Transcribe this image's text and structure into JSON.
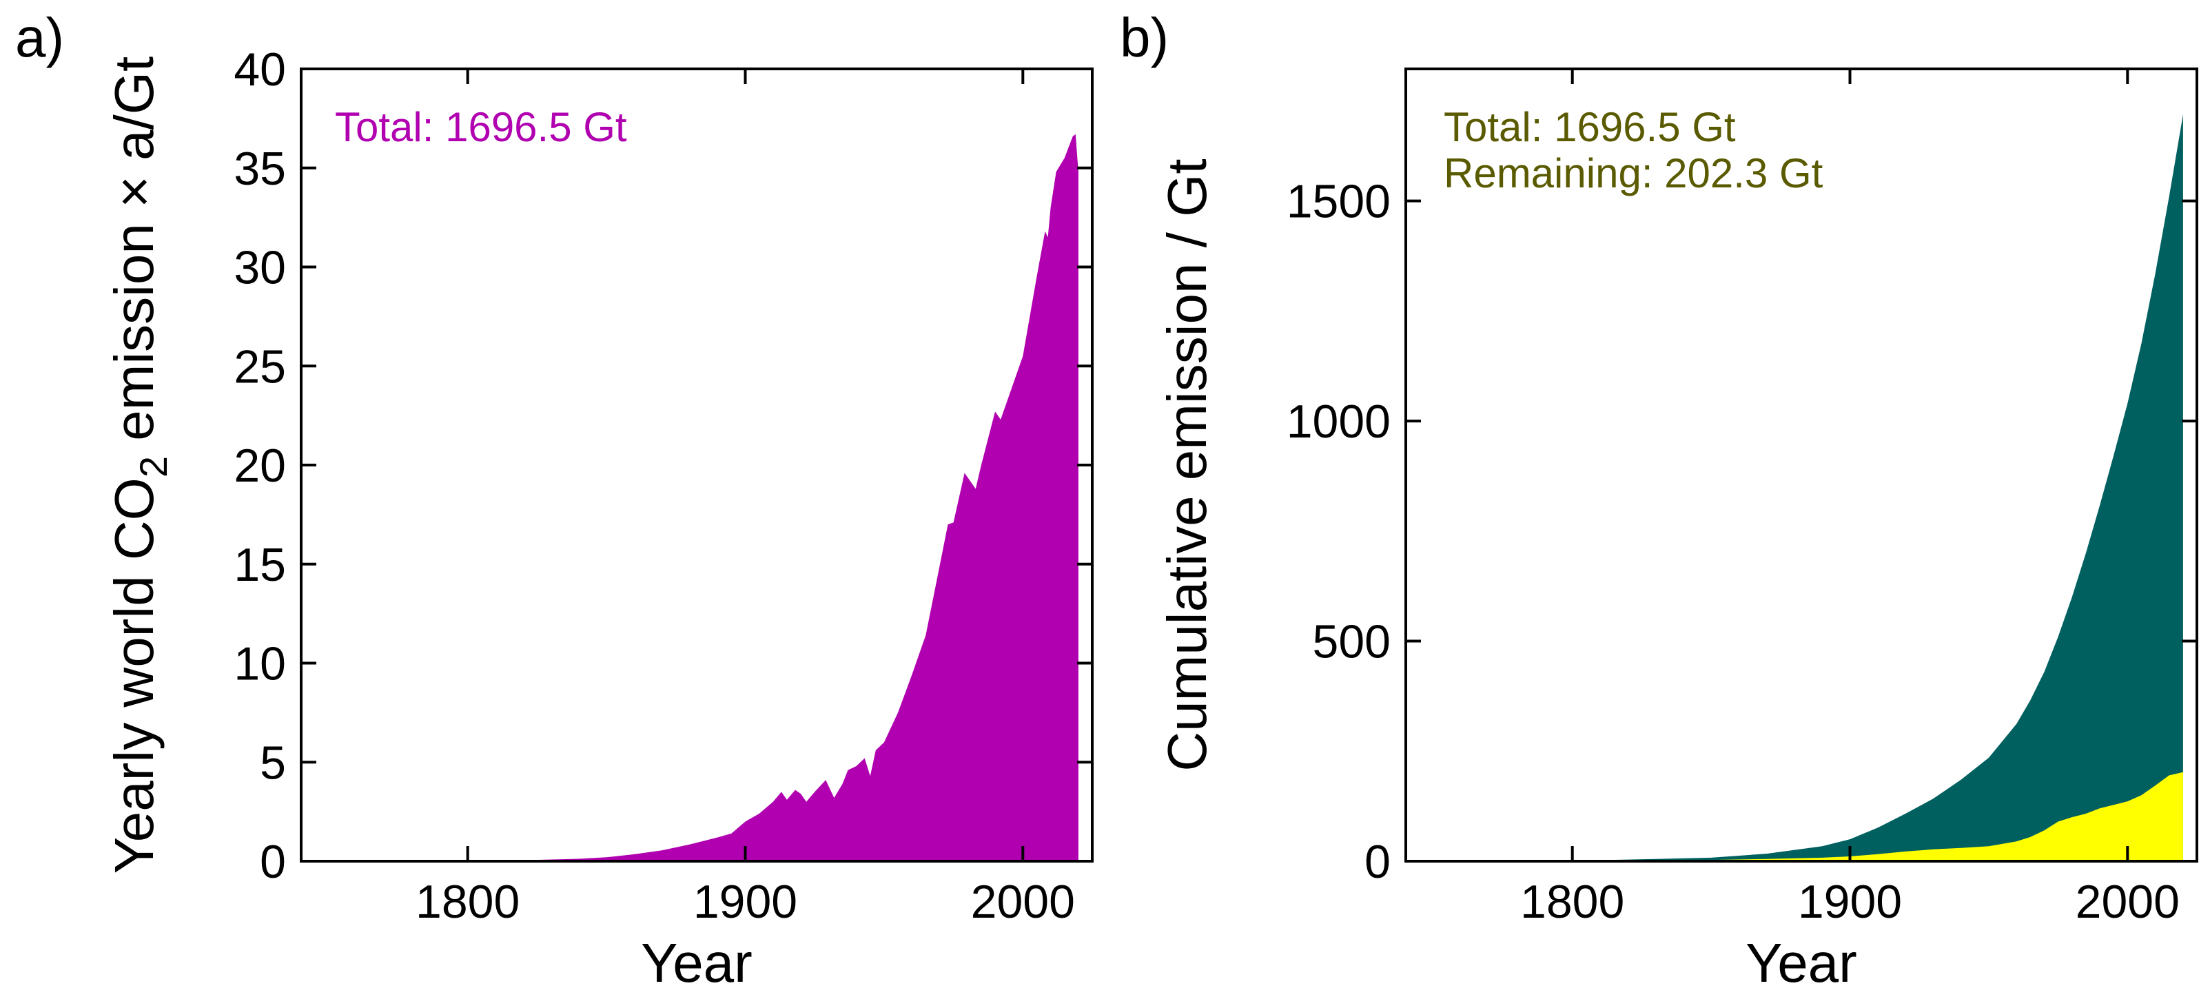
{
  "chart_data": [
    {
      "type": "area",
      "panel_label": "a)",
      "title": "",
      "xlabel": "Year",
      "ylabel_parts": [
        "Yearly world CO",
        "2",
        " emission × a/Gt"
      ],
      "xlim": [
        1740,
        2025
      ],
      "ylim": [
        0,
        40
      ],
      "xticks": [
        1800,
        1900,
        2000
      ],
      "yticks": [
        0,
        5,
        10,
        15,
        20,
        25,
        30,
        35,
        40
      ],
      "annotation": "Total: 1696.5 Gt",
      "annotation_color": "#b000b0",
      "series": [
        {
          "name": "Yearly CO2 emission",
          "color": "#b000b0",
          "x": [
            1750,
            1800,
            1820,
            1840,
            1850,
            1860,
            1870,
            1880,
            1890,
            1895,
            1900,
            1905,
            1910,
            1913,
            1915,
            1918,
            1920,
            1922,
            1925,
            1929,
            1930,
            1932,
            1935,
            1937,
            1940,
            1943,
            1945,
            1947,
            1950,
            1955,
            1960,
            1965,
            1970,
            1973,
            1975,
            1979,
            1980,
            1983,
            1985,
            1990,
            1992,
            1995,
            2000,
            2005,
            2008,
            2009,
            2010,
            2012,
            2015,
            2018,
            2019,
            2020
          ],
          "values": [
            0.01,
            0.03,
            0.05,
            0.12,
            0.2,
            0.35,
            0.55,
            0.85,
            1.2,
            1.4,
            2.0,
            2.4,
            3.0,
            3.5,
            3.1,
            3.6,
            3.4,
            3.0,
            3.5,
            4.1,
            3.8,
            3.2,
            3.9,
            4.6,
            4.8,
            5.2,
            4.3,
            5.6,
            6.0,
            7.5,
            9.4,
            11.4,
            14.9,
            17.0,
            17.1,
            19.6,
            19.4,
            18.8,
            20.0,
            22.7,
            22.3,
            23.5,
            25.5,
            29.5,
            31.8,
            31.5,
            33.0,
            34.8,
            35.5,
            36.6,
            36.7,
            34.8
          ]
        }
      ]
    },
    {
      "type": "area",
      "panel_label": "b)",
      "title": "",
      "xlabel": "Year",
      "ylabel": "Cumulative emission / Gt",
      "xlim": [
        1740,
        2025
      ],
      "ylim": [
        0,
        1800
      ],
      "xticks": [
        1800,
        1900,
        2000
      ],
      "yticks": [
        0,
        500,
        1000,
        1500
      ],
      "annotations": [
        "Total: 1696.5 Gt",
        "Remaining: 202.3 Gt"
      ],
      "annotation_color": "#5a5a00",
      "series": [
        {
          "name": "Total cumulative emission",
          "color": "#006060",
          "x": [
            1750,
            1800,
            1850,
            1870,
            1890,
            1900,
            1910,
            1920,
            1930,
            1940,
            1950,
            1960,
            1965,
            1970,
            1975,
            1980,
            1985,
            1990,
            1995,
            2000,
            2005,
            2010,
            2015,
            2020
          ],
          "values": [
            0,
            1,
            8,
            17,
            34,
            50,
            76,
            108,
            142,
            185,
            235,
            312,
            366,
            430,
            510,
            600,
            700,
            808,
            922,
            1040,
            1176,
            1335,
            1510,
            1696.5
          ]
        },
        {
          "name": "Remaining",
          "color": "#ffff00",
          "x": [
            1750,
            1800,
            1850,
            1870,
            1890,
            1900,
            1910,
            1920,
            1930,
            1940,
            1950,
            1960,
            1965,
            1970,
            1975,
            1980,
            1985,
            1990,
            1995,
            2000,
            2005,
            2010,
            2015,
            2020
          ],
          "values": [
            0,
            0.5,
            3,
            5,
            8,
            11,
            16,
            22,
            27,
            30,
            34,
            45,
            55,
            70,
            90,
            100,
            108,
            120,
            128,
            136,
            150,
            172,
            195,
            202.3
          ]
        }
      ]
    }
  ]
}
